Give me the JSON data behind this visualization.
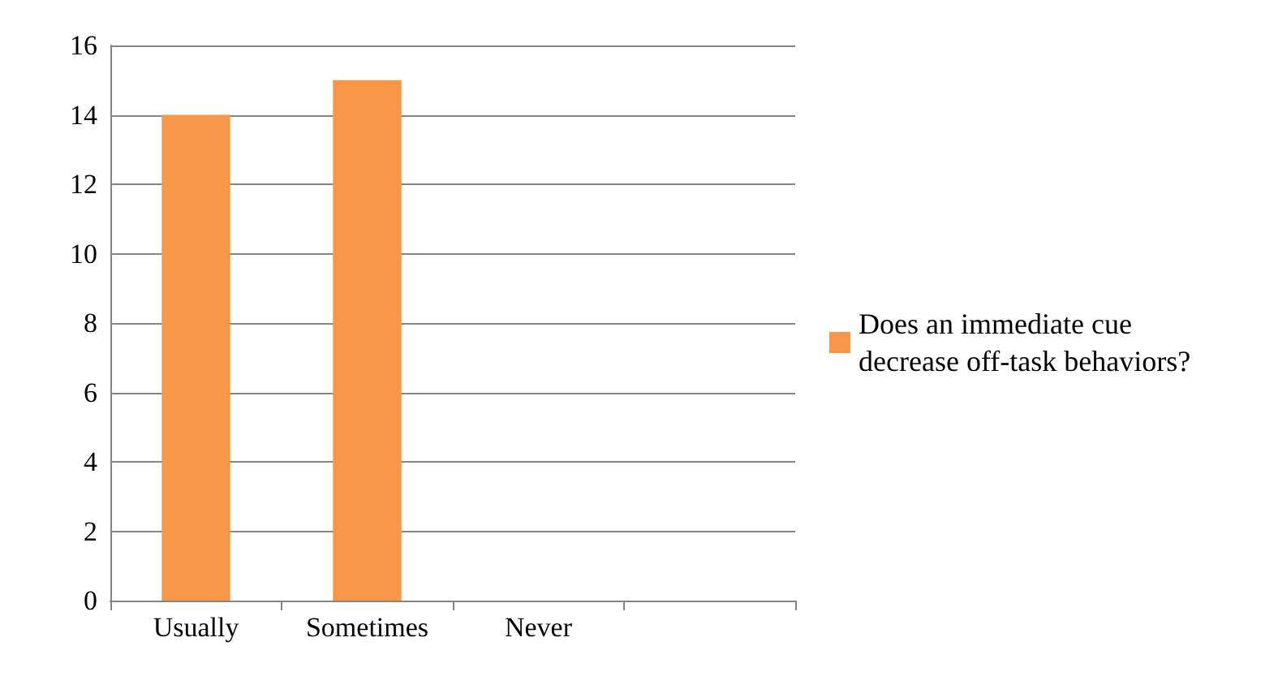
{
  "chart_data": {
    "type": "bar",
    "categories": [
      "Usually",
      "Sometimes",
      "Never",
      null
    ],
    "series": [
      {
        "name": "Does an immediate cue decrease off-task behaviors?",
        "color": "#f79646",
        "values": [
          14,
          15,
          0,
          null
        ]
      }
    ],
    "ylim": [
      0,
      16
    ],
    "yticks": [
      0,
      2,
      4,
      6,
      8,
      10,
      12,
      14,
      16
    ],
    "grid": "y",
    "legend": "right"
  }
}
